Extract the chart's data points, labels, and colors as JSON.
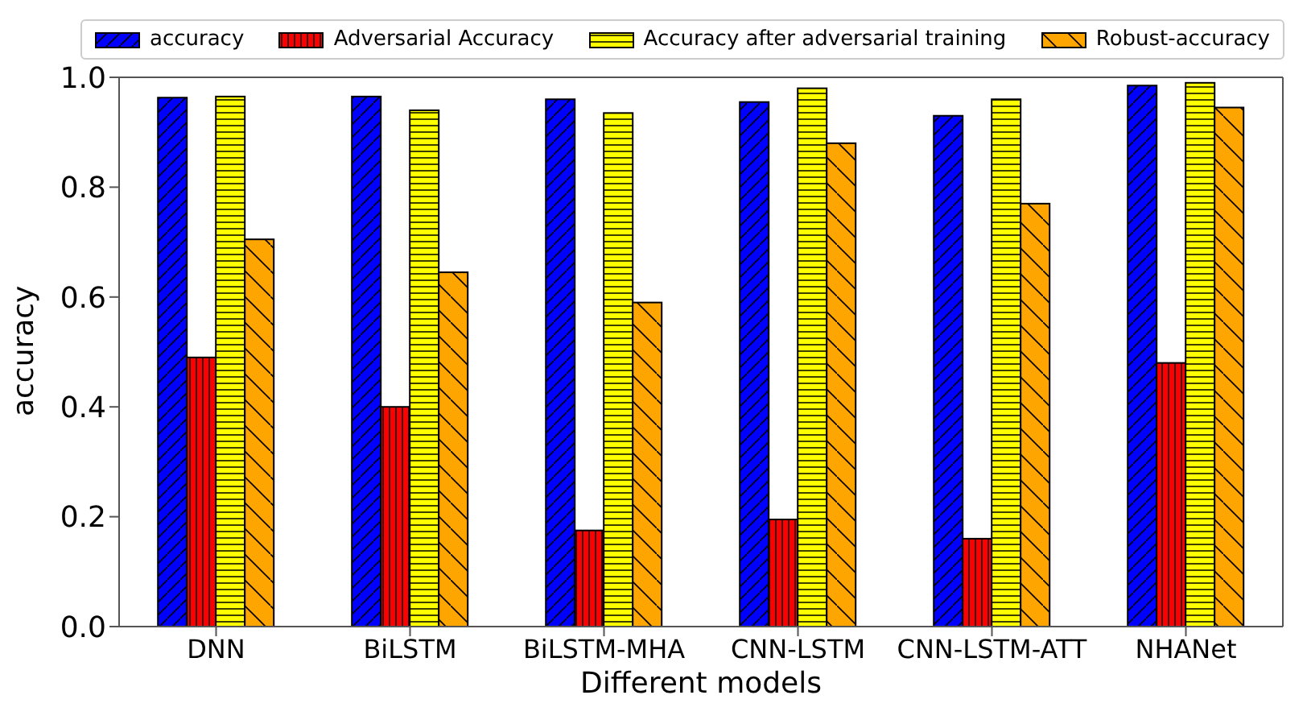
{
  "chart_data": {
    "type": "bar",
    "xlabel": "Different models",
    "ylabel": "accuracy",
    "categories": [
      "DNN",
      "BiLSTM",
      "BiLSTM-MHA",
      "CNN-LSTM",
      "CNN-LSTM-ATT",
      "NHANet"
    ],
    "series": [
      {
        "name": "accuracy",
        "color": "#0000ff",
        "values": [
          0.963,
          0.965,
          0.96,
          0.955,
          0.93,
          0.985
        ]
      },
      {
        "name": "Adversarial Accuracy",
        "color": "#ff0000",
        "values": [
          0.49,
          0.4,
          0.175,
          0.195,
          0.16,
          0.48
        ]
      },
      {
        "name": "Accuracy after adversarial training",
        "color": "#ffff00",
        "values": [
          0.965,
          0.94,
          0.935,
          0.98,
          0.96,
          0.99
        ]
      },
      {
        "name": "Robust-accuracy",
        "color": "#ffa500",
        "values": [
          0.705,
          0.645,
          0.59,
          0.88,
          0.77,
          0.945
        ]
      }
    ],
    "ylim": [
      0,
      1
    ],
    "yticks": [
      {
        "value": 0,
        "label": "0.0"
      },
      {
        "value": 0.2,
        "label": "0.2"
      },
      {
        "value": 0.4,
        "label": "0.4"
      },
      {
        "value": 0.6,
        "label": "0.6"
      },
      {
        "value": 0.8,
        "label": "0.8"
      },
      {
        "value": 1,
        "label": "1.0"
      }
    ],
    "legend": "top"
  }
}
